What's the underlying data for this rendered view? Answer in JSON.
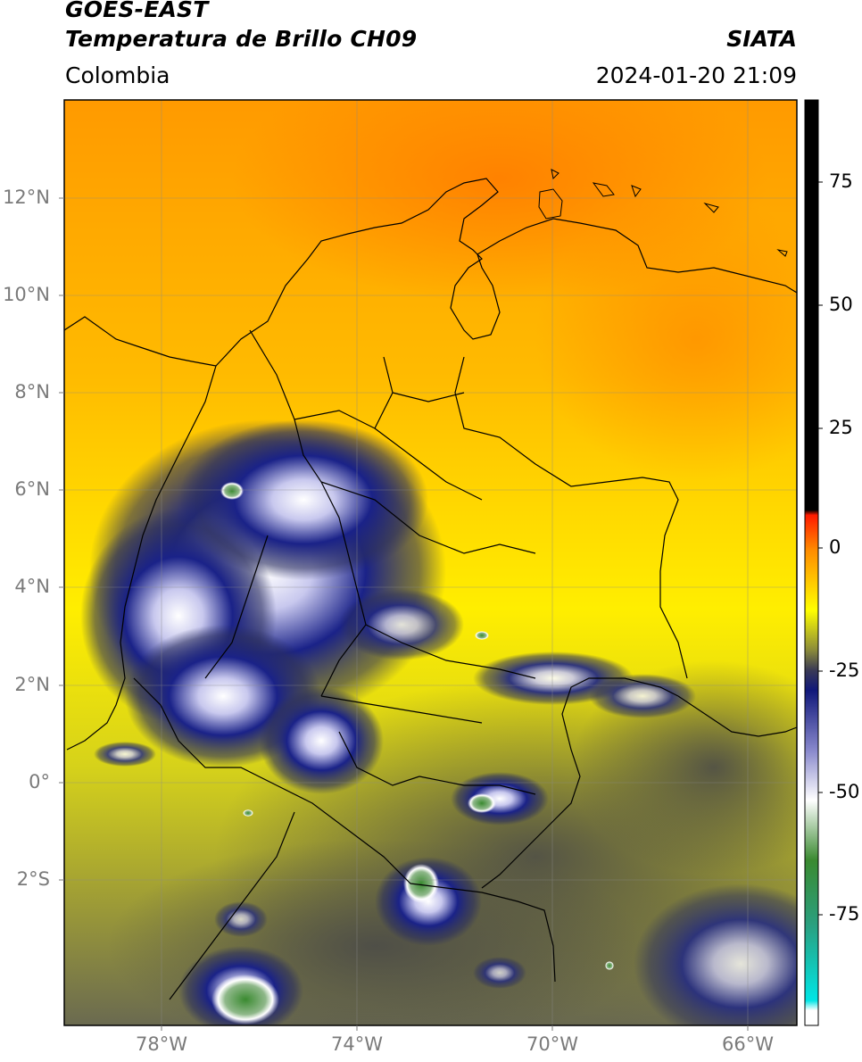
{
  "header": {
    "satellite": "GOES-EAST",
    "product": "Temperatura de Brillo CH09",
    "organization": "SIATA",
    "region": "Colombia",
    "timestamp": "2024-01-20 21:09"
  },
  "map": {
    "lat_labels": [
      "12°N",
      "10°N",
      "8°N",
      "6°N",
      "4°N",
      "2°N",
      "0°",
      "2°S"
    ],
    "lon_labels": [
      "78°W",
      "74°W",
      "70°W",
      "66°W"
    ],
    "extent": {
      "lon_min": -80,
      "lon_max": -65,
      "lat_min": -5,
      "lat_max": 14
    }
  },
  "colorbar": {
    "ticks": [
      "75",
      "50",
      "25",
      "0",
      "-25",
      "-50",
      "-75"
    ],
    "range": [
      -95,
      90
    ],
    "stops": [
      {
        "value": 90,
        "color": "#000000"
      },
      {
        "value": 8,
        "color": "#000000"
      },
      {
        "value": 7,
        "color": "#ff1a00"
      },
      {
        "value": 0,
        "color": "#ff8c00"
      },
      {
        "value": -12,
        "color": "#ffff00"
      },
      {
        "value": -20,
        "color": "#8a8a3a"
      },
      {
        "value": -24,
        "color": "#3a3a55"
      },
      {
        "value": -28,
        "color": "#10187a"
      },
      {
        "value": -40,
        "color": "#8888cc"
      },
      {
        "value": -50,
        "color": "#ffffff"
      },
      {
        "value": -62,
        "color": "#3a8a30"
      },
      {
        "value": -75,
        "color": "#2aa080"
      },
      {
        "value": -90,
        "color": "#00e5e5"
      },
      {
        "value": -92,
        "color": "#ffffff"
      }
    ]
  }
}
